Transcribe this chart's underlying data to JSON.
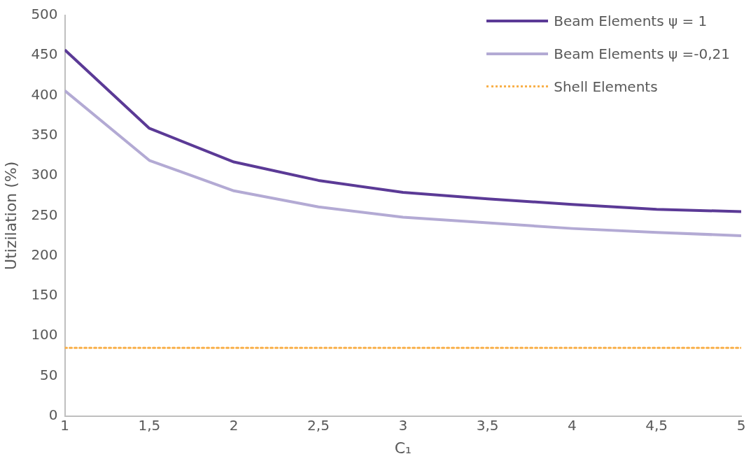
{
  "chart_data": {
    "type": "line",
    "xlabel": "C₁",
    "ylabel": "Utizilation (%)",
    "x": [
      1,
      1.5,
      2,
      2.5,
      3,
      3.5,
      4,
      4.5,
      5
    ],
    "series": [
      {
        "name": "Beam Elements ψ = 1",
        "color": "#5b3a96",
        "values": [
          457,
          359,
          317,
          294,
          279,
          271,
          264,
          258,
          255
        ],
        "line_style": "solid"
      },
      {
        "name": "Beam Elements ψ =-0,21",
        "color": "#b3aad4",
        "values": [
          406,
          319,
          281,
          261,
          248,
          241,
          234,
          229,
          225
        ],
        "line_style": "solid"
      },
      {
        "name": "Shell Elements",
        "color": "#f9b04a",
        "x": [
          1,
          5
        ],
        "values": [
          85,
          85
        ],
        "line_style": "dotted"
      }
    ],
    "xlim": [
      1,
      5
    ],
    "xticks": [
      1,
      {
        "value": 1.5,
        "label": "1,5"
      },
      2,
      {
        "value": 2.5,
        "label": "2,5"
      },
      3,
      {
        "value": 3.5,
        "label": "3,5"
      },
      4,
      {
        "value": 4.5,
        "label": "4,5"
      },
      5
    ],
    "ylim": [
      0,
      500
    ],
    "yticks": [
      0,
      50,
      100,
      150,
      200,
      250,
      300,
      350,
      400,
      450,
      500
    ],
    "grid": false,
    "legend": "top right",
    "marker": "none"
  }
}
